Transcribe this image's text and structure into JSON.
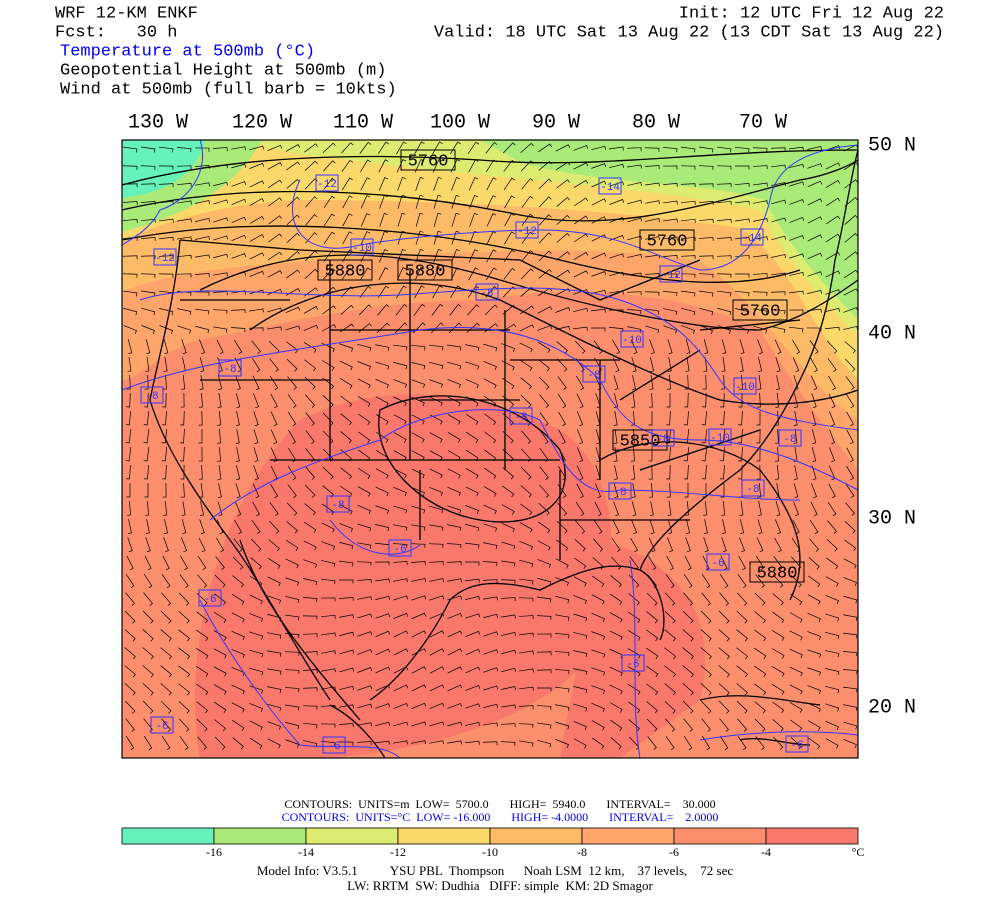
{
  "header": {
    "model": "WRF 12-KM ENKF",
    "forecast": "Fcst:   30 h",
    "init": "Init: 12 UTC Fri 12 Aug 22",
    "valid": "Valid: 18 UTC Sat 13 Aug 22 (13 CDT Sat 13 Aug 22)",
    "fields": [
      "Temperature at 500mb (°C)",
      "Geopotential Height at 500mb (m)",
      "Wind at 500mb (full barb = 10kts)"
    ]
  },
  "map": {
    "longitude_labels": [
      "130 W",
      "120 W",
      "110 W",
      "100 W",
      "90 W",
      "80 W",
      "70 W"
    ],
    "latitude_labels": [
      "50 N",
      "40 N",
      "30 N",
      "20 N"
    ],
    "height_labels": [
      "5760",
      "5760",
      "5760",
      "5880",
      "5880",
      "5850",
      "5880"
    ],
    "temperature_labels": [
      "-12",
      "-14",
      "-12",
      "-14",
      "-12",
      "-10",
      "-12",
      "-8",
      "-10",
      "-8",
      "-8",
      "-8",
      "-8",
      "-10",
      "-10",
      "-8",
      "-8",
      "-8",
      "-8",
      "-8",
      "-6",
      "-6",
      "-6",
      "-6",
      "-6",
      "-6",
      "-6"
    ]
  },
  "footer": {
    "height_contours": "CONTOURS:  UNITS=m  LOW=  5700.0       HIGH=  5940.0       INTERVAL=    30.000",
    "temperature_contours": "CONTOURS:  UNITS=°C  LOW= -16.000       HIGH= -4.0000       INTERVAL=    2.0000",
    "model_info": "Model Info: V3.5.1          YSU PBL  Thompson      Noah LSM  12 km,    37 levels,    72 sec",
    "physics": "LW: RRTM  SW: Dudhia   DIFF: simple  KM: 2D Smagor"
  },
  "colorbar": {
    "colors": [
      "#66f2b8",
      "#aaea78",
      "#ddec70",
      "#fbd86a",
      "#fdbb68",
      "#fda56a",
      "#fb8e6c",
      "#f8786c"
    ],
    "labels": [
      "-16",
      "-14",
      "-12",
      "-10",
      "-8",
      "-6",
      "-4"
    ],
    "unit": "°C"
  }
}
